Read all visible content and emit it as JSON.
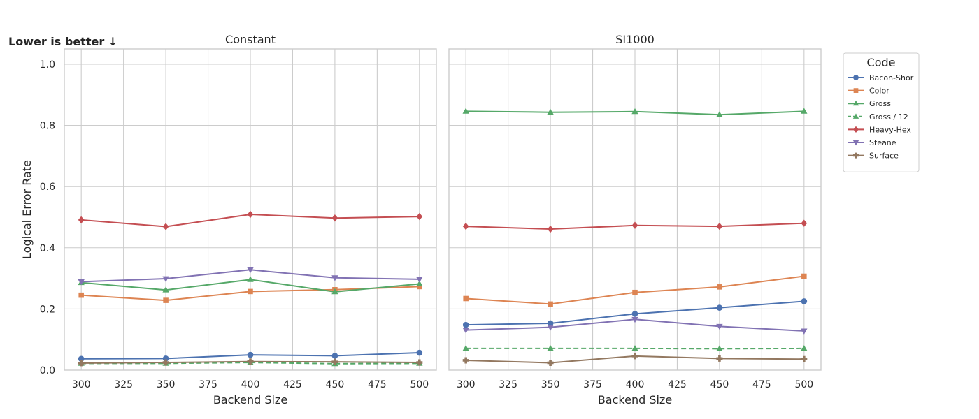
{
  "annotation": "Lower is better ↓",
  "chart_data": {
    "type": "line",
    "ylabel": "Logical Error Rate",
    "ylim": [
      0,
      1.05
    ],
    "y_ticks": [
      "0.0",
      "0.2",
      "0.4",
      "0.6",
      "0.8",
      "1.0"
    ],
    "grid": true,
    "legend": {
      "title": "Code",
      "placement": "right",
      "entries": [
        "Bacon-Shor",
        "Color",
        "Gross",
        "Gross / 12",
        "Heavy-Hex",
        "Steane",
        "Surface"
      ]
    },
    "series_styles": [
      {
        "color": "#4c72b0",
        "marker": "circle",
        "dashed": false
      },
      {
        "color": "#dd8452",
        "marker": "square",
        "dashed": false
      },
      {
        "color": "#55a868",
        "marker": "triangle-up",
        "dashed": false
      },
      {
        "color": "#55a868",
        "marker": "triangle-up",
        "dashed": true
      },
      {
        "color": "#c44e52",
        "marker": "diamond",
        "dashed": false
      },
      {
        "color": "#8172b3",
        "marker": "triangle-down",
        "dashed": false
      },
      {
        "color": "#937860",
        "marker": "plus",
        "dashed": false
      }
    ],
    "panels": [
      {
        "title": "Constant",
        "xlabel": "Backend Size",
        "xlim": [
          290,
          510
        ],
        "x_ticks": [
          "300",
          "325",
          "350",
          "375",
          "400",
          "425",
          "450",
          "475",
          "500"
        ],
        "x": [
          300,
          350,
          400,
          450,
          500
        ],
        "series": [
          {
            "name": "Bacon-Shor",
            "values": [
              0.037,
              0.038,
              0.05,
              0.047,
              0.057
            ]
          },
          {
            "name": "Color",
            "values": [
              0.245,
              0.228,
              0.257,
              0.263,
              0.273
            ]
          },
          {
            "name": "Gross",
            "values": [
              0.286,
              0.262,
              0.296,
              0.256,
              0.282
            ]
          },
          {
            "name": "Gross / 12",
            "values": [
              0.022,
              0.022,
              0.025,
              0.021,
              0.022
            ]
          },
          {
            "name": "Heavy-Hex",
            "values": [
              0.491,
              0.469,
              0.509,
              0.497,
              0.502
            ]
          },
          {
            "name": "Steane",
            "values": [
              0.289,
              0.299,
              0.328,
              0.302,
              0.297
            ]
          },
          {
            "name": "Surface",
            "values": [
              0.023,
              0.025,
              0.028,
              0.027,
              0.025
            ]
          }
        ]
      },
      {
        "title": "SI1000",
        "xlabel": "Backend Size",
        "xlim": [
          290,
          510
        ],
        "x_ticks": [
          "300",
          "325",
          "350",
          "375",
          "400",
          "425",
          "450",
          "475",
          "500"
        ],
        "x": [
          300,
          350,
          400,
          450,
          500
        ],
        "series": [
          {
            "name": "Bacon-Shor",
            "values": [
              0.148,
              0.153,
              0.184,
              0.204,
              0.225
            ]
          },
          {
            "name": "Color",
            "values": [
              0.234,
              0.216,
              0.254,
              0.272,
              0.307
            ]
          },
          {
            "name": "Gross",
            "values": [
              0.846,
              0.843,
              0.845,
              0.835,
              0.846
            ]
          },
          {
            "name": "Gross / 12",
            "values": [
              0.071,
              0.071,
              0.071,
              0.07,
              0.071
            ]
          },
          {
            "name": "Heavy-Hex",
            "values": [
              0.47,
              0.461,
              0.473,
              0.47,
              0.48
            ]
          },
          {
            "name": "Steane",
            "values": [
              0.131,
              0.14,
              0.166,
              0.143,
              0.128
            ]
          },
          {
            "name": "Surface",
            "values": [
              0.032,
              0.024,
              0.046,
              0.038,
              0.036
            ]
          }
        ]
      }
    ]
  }
}
